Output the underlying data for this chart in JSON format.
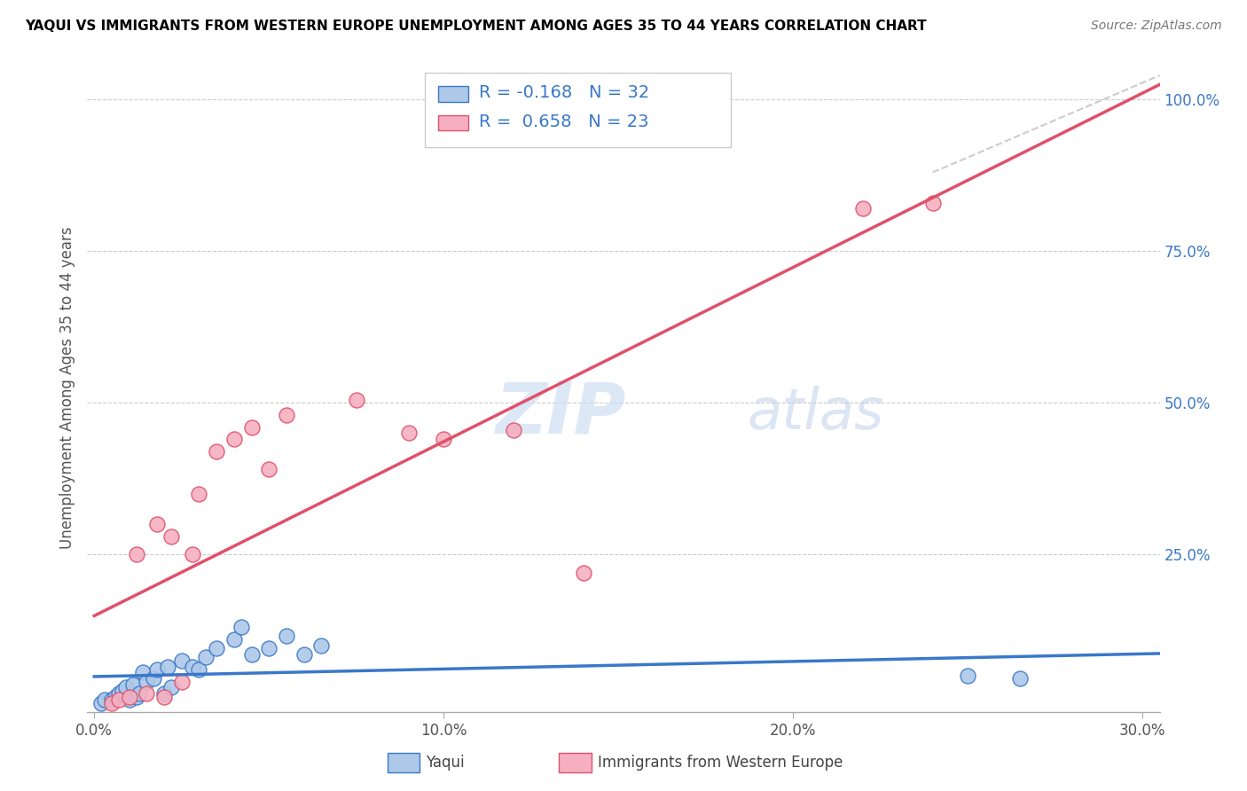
{
  "title": "YAQUI VS IMMIGRANTS FROM WESTERN EUROPE UNEMPLOYMENT AMONG AGES 35 TO 44 YEARS CORRELATION CHART",
  "source": "Source: ZipAtlas.com",
  "ylabel": "Unemployment Among Ages 35 to 44 years",
  "xlim": [
    -0.002,
    0.305
  ],
  "ylim": [
    -0.01,
    1.06
  ],
  "xtick_labels": [
    "0.0%",
    "10.0%",
    "20.0%",
    "30.0%"
  ],
  "xtick_values": [
    0.0,
    0.1,
    0.2,
    0.3
  ],
  "ytick_labels": [
    "100.0%",
    "75.0%",
    "50.0%",
    "25.0%"
  ],
  "ytick_values": [
    1.0,
    0.75,
    0.5,
    0.25
  ],
  "yaqui_color": "#adc8e8",
  "immigrants_color": "#f5afc0",
  "yaqui_line_color": "#3a78c9",
  "immigrants_line_color": "#e0506a",
  "legend_R_color": "#3a78c9",
  "yaqui_R": "-0.168",
  "yaqui_N": "32",
  "immigrants_R": "0.658",
  "immigrants_N": "23",
  "watermark_zip": "ZIP",
  "watermark_atlas": "atlas",
  "watermark_color_zip": "#c5daf0",
  "watermark_color_atlas": "#b8cce8",
  "yaqui_scatter_x": [
    0.002,
    0.003,
    0.005,
    0.006,
    0.007,
    0.008,
    0.009,
    0.01,
    0.011,
    0.012,
    0.013,
    0.014,
    0.015,
    0.017,
    0.018,
    0.02,
    0.021,
    0.022,
    0.025,
    0.028,
    0.03,
    0.032,
    0.035,
    0.04,
    0.042,
    0.045,
    0.05,
    0.055,
    0.06,
    0.065,
    0.25,
    0.265
  ],
  "yaqui_scatter_y": [
    0.005,
    0.01,
    0.01,
    0.015,
    0.02,
    0.025,
    0.03,
    0.01,
    0.035,
    0.015,
    0.02,
    0.055,
    0.04,
    0.045,
    0.06,
    0.02,
    0.065,
    0.03,
    0.075,
    0.065,
    0.06,
    0.08,
    0.095,
    0.11,
    0.13,
    0.085,
    0.095,
    0.115,
    0.085,
    0.1,
    0.05,
    0.045
  ],
  "immigrants_scatter_x": [
    0.005,
    0.007,
    0.01,
    0.012,
    0.015,
    0.018,
    0.02,
    0.022,
    0.025,
    0.028,
    0.03,
    0.035,
    0.04,
    0.045,
    0.05,
    0.055,
    0.075,
    0.09,
    0.1,
    0.12,
    0.14,
    0.22,
    0.24
  ],
  "immigrants_scatter_y": [
    0.005,
    0.01,
    0.015,
    0.25,
    0.02,
    0.3,
    0.015,
    0.28,
    0.04,
    0.25,
    0.35,
    0.42,
    0.44,
    0.46,
    0.39,
    0.48,
    0.505,
    0.45,
    0.44,
    0.455,
    0.22,
    0.82,
    0.83
  ],
  "diag_line_x": [
    0.24,
    0.305
  ],
  "diag_line_y": [
    0.88,
    1.04
  ],
  "bottom_legend_yaqui_label": "Yaqui",
  "bottom_legend_imm_label": "Immigrants from Western Europe"
}
